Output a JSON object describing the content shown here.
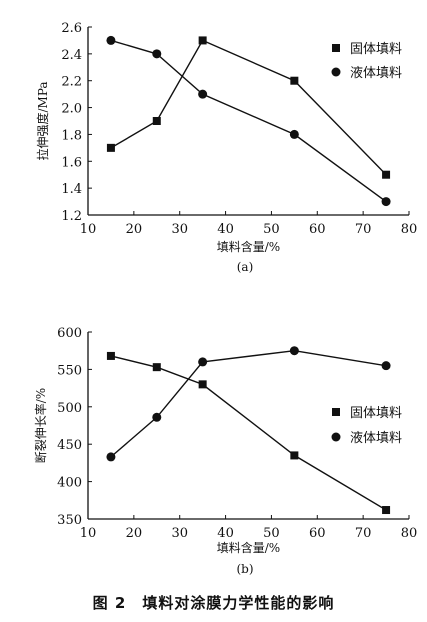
{
  "figure_caption": "图 2　填料对涂膜力学性能的影响",
  "chart_data": [
    {
      "type": "line",
      "panel_label": "(a)",
      "xlabel": "填料含量/%",
      "ylabel": "拉伸强度/MPa",
      "xlim": [
        10,
        80
      ],
      "ylim": [
        1.2,
        2.6
      ],
      "xticks": [
        "10",
        "20",
        "30",
        "40",
        "50",
        "60",
        "70",
        "80"
      ],
      "yticks": [
        "1.2",
        "1.4",
        "1.6",
        "1.8",
        "2.0",
        "2.2",
        "2.4",
        "2.6"
      ],
      "grid": false,
      "legend_position": "right",
      "x": [
        15,
        25,
        35,
        55,
        75
      ],
      "series": [
        {
          "name": "固体填料",
          "marker": "square",
          "values": [
            1.7,
            1.9,
            2.5,
            2.2,
            1.5
          ]
        },
        {
          "name": "液体填料",
          "marker": "circle",
          "values": [
            2.5,
            2.4,
            2.1,
            1.8,
            1.3
          ]
        }
      ]
    },
    {
      "type": "line",
      "panel_label": "(b)",
      "xlabel": "填料含量/%",
      "ylabel": "断裂伸长率/%",
      "xlim": [
        10,
        80
      ],
      "ylim": [
        350,
        600
      ],
      "xticks": [
        "10",
        "20",
        "30",
        "40",
        "50",
        "60",
        "70",
        "80"
      ],
      "yticks": [
        "350",
        "400",
        "450",
        "500",
        "550",
        "600"
      ],
      "grid": false,
      "legend_position": "right",
      "x": [
        15,
        25,
        35,
        55,
        75
      ],
      "series": [
        {
          "name": "固体填料",
          "marker": "square",
          "values": [
            568,
            553,
            530,
            435,
            362
          ]
        },
        {
          "name": "液体填料",
          "marker": "circle",
          "values": [
            433,
            486,
            560,
            575,
            555
          ]
        }
      ]
    }
  ]
}
